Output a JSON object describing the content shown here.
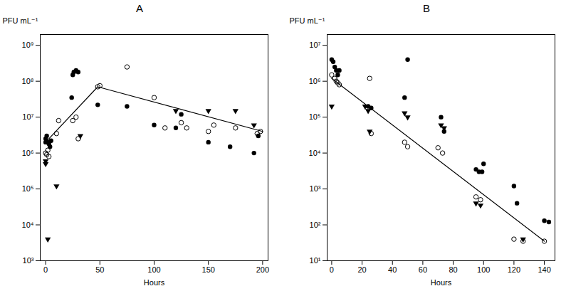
{
  "chart_data": [
    {
      "type": "scatter",
      "title": "A",
      "xlabel": "Hours",
      "ylabel": "PFU mL⁻¹",
      "log": "y",
      "grid": false,
      "xlim": [
        -5,
        205
      ],
      "ylim": [
        1000,
        2000000000
      ],
      "xticks": [
        0,
        50,
        100,
        150,
        200
      ],
      "yticks": [
        {
          "value": 1000,
          "label": "10³"
        },
        {
          "value": 10000,
          "label": "10⁴"
        },
        {
          "value": 100000,
          "label": "10⁵"
        },
        {
          "value": 1000000,
          "label": "10⁶"
        },
        {
          "value": 10000000,
          "label": "10⁷"
        },
        {
          "value": 100000000,
          "label": "10⁸"
        },
        {
          "value": 1000000000,
          "label": "10⁹"
        }
      ],
      "series": [
        {
          "type": "line",
          "line_style": "solid",
          "color": "black",
          "x": [
            0,
            48,
            200
          ],
          "values": [
            2000000,
            70000000,
            4000000
          ]
        },
        {
          "type": "scatter",
          "marker": "circle",
          "color": "black",
          "x": [
            0,
            0,
            1,
            2,
            3,
            4,
            5,
            24,
            25,
            26,
            28,
            30,
            48,
            75,
            100,
            120,
            125,
            150,
            170,
            192,
            196
          ],
          "values": [
            2000000,
            2500000,
            3000000,
            2000000,
            1800000,
            1500000,
            2200000,
            35000000,
            150000000,
            180000000,
            200000000,
            180000000,
            22000000,
            20000000,
            6000000,
            5000000,
            12000000,
            2000000,
            1500000,
            1000000,
            3000000
          ]
        },
        {
          "type": "scatter",
          "marker": "open_circle",
          "color": "black",
          "x": [
            0,
            1,
            2,
            3,
            10,
            12,
            25,
            28,
            30,
            48,
            50,
            75,
            100,
            110,
            125,
            130,
            150,
            155,
            175,
            195,
            198
          ],
          "values": [
            1000000,
            900000,
            1200000,
            800000,
            3500000,
            8000000,
            8000000,
            10000000,
            2500000,
            70000000,
            75000000,
            250000000,
            35000000,
            5000000,
            7000000,
            5000000,
            4000000,
            6000000,
            5000000,
            3500000,
            4000000
          ]
        },
        {
          "type": "scatter",
          "marker": "triangle_down",
          "color": "black",
          "x": [
            0,
            0,
            10,
            2,
            32,
            120,
            150,
            175,
            192
          ],
          "values": [
            600000,
            500000,
            120000,
            4000,
            3000000,
            15000000,
            15000000,
            15000000,
            6000000
          ]
        }
      ]
    },
    {
      "type": "scatter",
      "title": "B",
      "xlabel": "Hours",
      "ylabel": "PFU mL⁻¹",
      "log": "y",
      "grid": false,
      "xlim": [
        -3,
        147
      ],
      "ylim": [
        10,
        20000000
      ],
      "xticks": [
        0,
        20,
        40,
        60,
        80,
        100,
        120,
        140
      ],
      "yticks": [
        {
          "value": 10,
          "label": "10¹"
        },
        {
          "value": 100,
          "label": "10²"
        },
        {
          "value": 1000,
          "label": "10³"
        },
        {
          "value": 10000,
          "label": "10⁴"
        },
        {
          "value": 100000,
          "label": "10⁵"
        },
        {
          "value": 1000000,
          "label": "10⁶"
        },
        {
          "value": 10000000,
          "label": "10⁷"
        }
      ],
      "series": [
        {
          "type": "line",
          "line_style": "solid",
          "color": "black",
          "x": [
            0,
            140
          ],
          "values": [
            1200000,
            35
          ]
        },
        {
          "type": "scatter",
          "marker": "circle",
          "color": "black",
          "x": [
            0,
            1,
            2,
            3,
            4,
            5,
            24,
            26,
            50,
            48,
            72,
            74,
            95,
            97,
            99,
            100,
            120,
            122,
            140,
            143
          ],
          "values": [
            4000000,
            3500000,
            2500000,
            2000000,
            1500000,
            2000000,
            200000,
            180000,
            4000000,
            350000,
            100000,
            40000,
            3500,
            3000,
            3000,
            5000,
            1200,
            400,
            130,
            120
          ]
        },
        {
          "type": "scatter",
          "marker": "open_circle",
          "color": "black",
          "x": [
            0,
            2,
            3,
            4,
            5,
            25,
            26,
            48,
            50,
            70,
            73,
            95,
            98,
            120,
            126,
            140
          ],
          "values": [
            1500000,
            1200000,
            1000000,
            900000,
            800000,
            1200000,
            35000,
            20000,
            15000,
            14000,
            10000,
            600,
            500,
            40,
            35,
            35
          ]
        },
        {
          "type": "scatter",
          "marker": "triangle_down",
          "color": "black",
          "x": [
            0,
            22,
            24,
            25,
            48,
            50,
            72,
            74,
            95,
            98,
            126
          ],
          "values": [
            200000,
            200000,
            150000,
            40000,
            130000,
            100000,
            60000,
            50000,
            400,
            350,
            40
          ]
        }
      ]
    }
  ]
}
